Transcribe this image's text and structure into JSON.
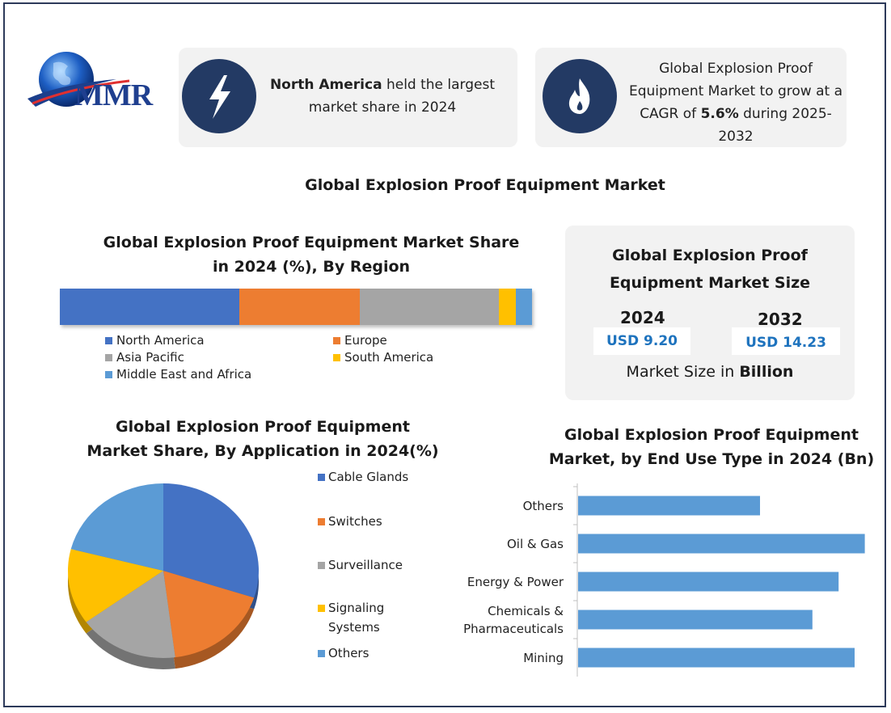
{
  "logo": {
    "text": "MMR"
  },
  "card_left": {
    "bold": "North America",
    "rest1": " held the largest",
    "line2": "market share in 2024",
    "icon": "lightning-icon"
  },
  "card_right": {
    "line1": "Global Explosion Proof",
    "line2": "Equipment Market to grow at a",
    "line3_pre": "CAGR of ",
    "line3_bold": "5.6%",
    "line3_post": " during 2025-2032",
    "icon": "flame-icon"
  },
  "main_title": "Global Explosion Proof Equipment Market",
  "size_card": {
    "title_line1": "Global Explosion Proof",
    "title_line2": "Equipment Market Size",
    "year_a": "2024",
    "value_a": "USD 9.20",
    "year_b": "2032",
    "value_b": "USD 14.23",
    "footer_pre": "Market Size in ",
    "footer_bold": "Billion"
  },
  "colors": {
    "navy": "#233a64",
    "blue": "#4472c4",
    "orange": "#ed7d31",
    "gray": "#a5a5a5",
    "yellow": "#ffc000",
    "lightblue": "#5b9bd5",
    "usd": "#1e73be"
  },
  "chart_data": [
    {
      "type": "bar",
      "orientation": "stacked-horizontal",
      "title_line1": "Global Explosion Proof Equipment Market Share",
      "title_line2": "in 2024 (%), By Region",
      "categories": [
        "2024"
      ],
      "series": [
        {
          "name": "North America",
          "values": [
            38
          ],
          "color": "#4472c4"
        },
        {
          "name": "Europe",
          "values": [
            25.5
          ],
          "color": "#ed7d31"
        },
        {
          "name": "Asia Pacific",
          "values": [
            29.5
          ],
          "color": "#a5a5a5"
        },
        {
          "name": "South America",
          "values": [
            3.5
          ],
          "color": "#ffc000"
        },
        {
          "name": "Middle East and Africa",
          "values": [
            3.5
          ],
          "color": "#5b9bd5"
        }
      ],
      "legend": "bottom"
    },
    {
      "type": "pie",
      "title_line1": "Global Explosion Proof Equipment",
      "title_line2": "Market Share, By Application in 2024(%)",
      "labels": [
        "Cable Glands",
        "Switches",
        "Surveillance",
        "Signaling Systems",
        "Others"
      ],
      "legend_lines": [
        [
          "Cable Glands"
        ],
        [
          "Switches"
        ],
        [
          "Surveillance"
        ],
        [
          "Signaling",
          "Systems"
        ],
        [
          "Others"
        ]
      ],
      "values": [
        30,
        18,
        17,
        14,
        21
      ],
      "colors": [
        "#4472c4",
        "#ed7d31",
        "#a5a5a5",
        "#ffc000",
        "#5b9bd5"
      ],
      "legend": "right"
    },
    {
      "type": "bar",
      "orientation": "horizontal",
      "title_line1": "Global Explosion Proof Equipment",
      "title_line2": "Market, by End Use Type in 2024 (Bn)",
      "categories": [
        "Others",
        "Oil & Gas",
        "Energy & Power",
        "Chemicals & Pharmaceuticals",
        "Mining"
      ],
      "category_lines": [
        [
          "Others"
        ],
        [
          "Oil & Gas"
        ],
        [
          "Energy & Power"
        ],
        [
          "Chemicals &",
          "Pharmaceuticals"
        ],
        [
          "Mining"
        ]
      ],
      "values": [
        1.25,
        1.97,
        1.79,
        1.61,
        1.9
      ],
      "xlim": [
        0,
        2.0
      ],
      "color": "#5b9bd5"
    }
  ]
}
